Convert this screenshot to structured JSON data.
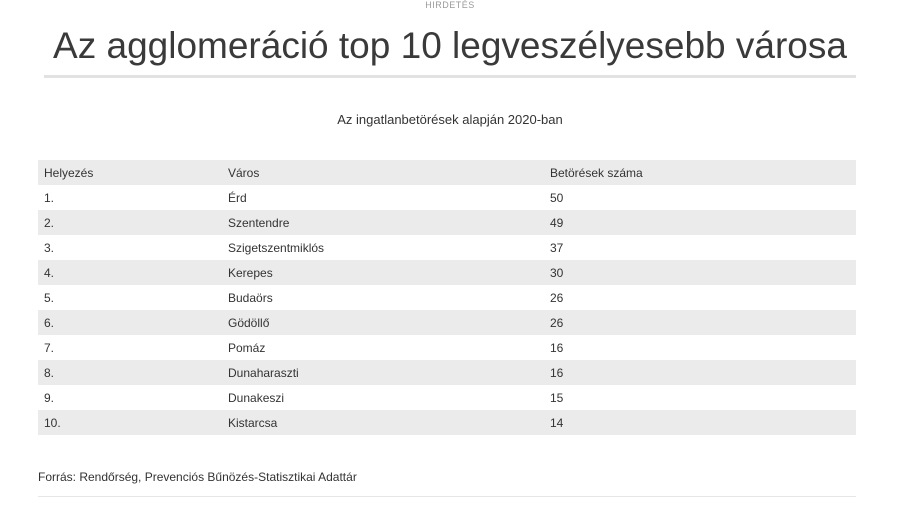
{
  "ad_label": "HIRDETÉS",
  "title": "Az agglomeráció top 10 legveszélyesebb városa",
  "subtitle": "Az ingatlanbetörések alapján 2020-ban",
  "table": {
    "headers": [
      "Helyezés",
      "Város",
      "Betörések száma"
    ],
    "rows": [
      {
        "rank": "1.",
        "city": "Érd",
        "count": "50"
      },
      {
        "rank": "2.",
        "city": "Szentendre",
        "count": "49"
      },
      {
        "rank": "3.",
        "city": "Szigetszentmiklós",
        "count": "37"
      },
      {
        "rank": "4.",
        "city": "Kerepes",
        "count": "30"
      },
      {
        "rank": "5.",
        "city": "Budaörs",
        "count": "26"
      },
      {
        "rank": "6.",
        "city": "Gödöllő",
        "count": "26"
      },
      {
        "rank": "7.",
        "city": "Pomáz",
        "count": "16"
      },
      {
        "rank": "8.",
        "city": "Dunaharaszti",
        "count": "16"
      },
      {
        "rank": "9.",
        "city": "Dunakeszi",
        "count": "15"
      },
      {
        "rank": "10.",
        "city": "Kistarcsa",
        "count": "14"
      }
    ]
  },
  "source": "Forrás: Rendőrség, Prevenciós Bűnözés-Statisztikai Adattár"
}
